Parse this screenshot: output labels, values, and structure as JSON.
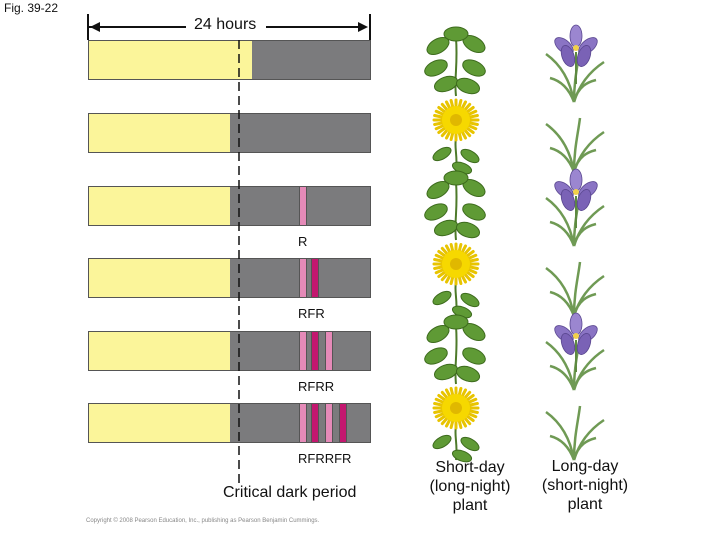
{
  "figure_label": "Fig. 39-22",
  "period_label": "24 hours",
  "critical_label": "Critical dark period",
  "colors": {
    "light": "#fbf59a",
    "dark": "#7b7b7d",
    "red_flash": "#e58ab8",
    "far_red_flash": "#c3176f"
  },
  "rows": [
    {
      "sequence": "",
      "flashes": []
    },
    {
      "sequence": "",
      "flashes": []
    },
    {
      "sequence": "R",
      "flashes": [
        "R"
      ]
    },
    {
      "sequence": "RFR",
      "flashes": [
        "R",
        "FR"
      ]
    },
    {
      "sequence": "RFRR",
      "flashes": [
        "R",
        "FR",
        "R"
      ]
    },
    {
      "sequence": "RFRRFR",
      "flashes": [
        "R",
        "FR",
        "R",
        "FR"
      ]
    }
  ],
  "short_day_plant": {
    "lines": [
      "Short-day",
      "(long-night)",
      "plant"
    ],
    "states": [
      "vegetative",
      "flowering",
      "vegetative",
      "flowering",
      "vegetative",
      "flowering"
    ]
  },
  "long_day_plant": {
    "lines": [
      "Long-day",
      "(short-night)",
      "plant"
    ],
    "states": [
      "flowering",
      "vegetative",
      "flowering",
      "vegetative",
      "flowering",
      "vegetative"
    ]
  },
  "copyright": "Copyright © 2008 Pearson Education, Inc., publishing as Pearson Benjamin Cummings."
}
